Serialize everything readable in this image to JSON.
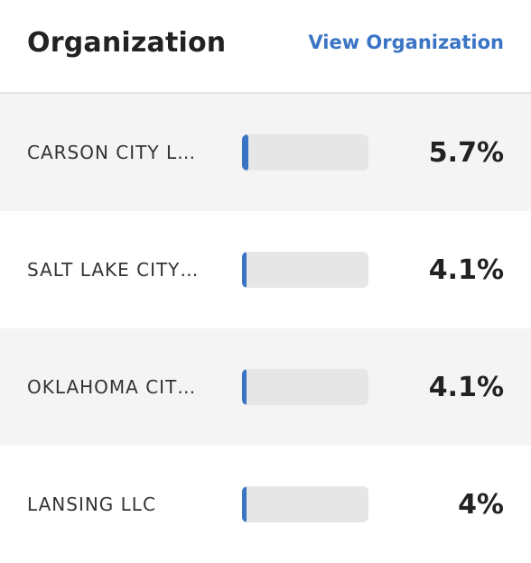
{
  "header": {
    "title": "Organization",
    "view_link": "View Organization"
  },
  "colors": {
    "accent": "#3a74c4",
    "row_shade": "#f4f4f4",
    "bar_track": "#e6e6e6"
  },
  "rows": [
    {
      "name": "CARSON CITY L…",
      "percent": "5.7%",
      "value": 0.057
    },
    {
      "name": "SALT LAKE CITY…",
      "percent": "4.1%",
      "value": 0.041
    },
    {
      "name": "OKLAHOMA CIT…",
      "percent": "4.1%",
      "value": 0.041
    },
    {
      "name": "LANSING LLC",
      "percent": "4%",
      "value": 0.04
    }
  ]
}
